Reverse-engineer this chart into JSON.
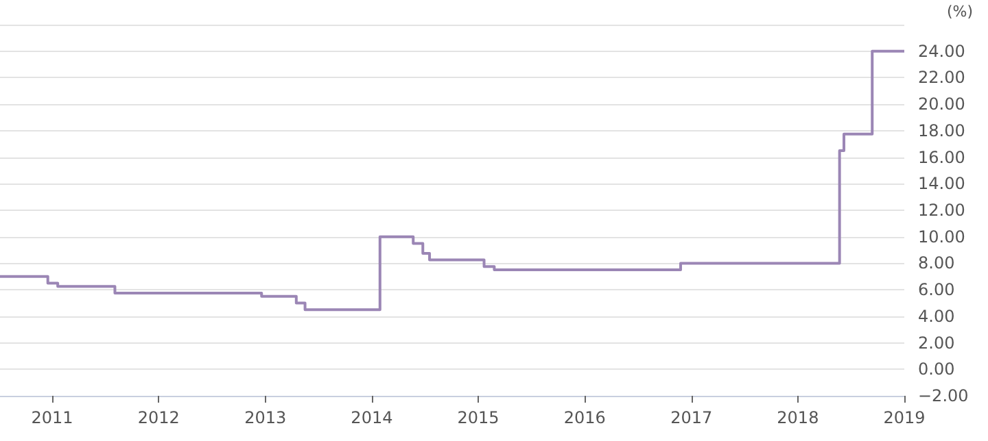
{
  "chart_data": {
    "type": "step",
    "ylabel": "(%)",
    "x": [
      "2010-07-06",
      "2010-12-17",
      "2011-01-20",
      "2011-08-04",
      "2012-12-19",
      "2013-04-17",
      "2013-05-17",
      "2014-01-29",
      "2014-05-23",
      "2014-06-25",
      "2014-07-18",
      "2015-01-21",
      "2015-02-25",
      "2016-11-25",
      "2018-05-24",
      "2018-06-08",
      "2018-09-13",
      "2019-01-01"
    ],
    "series": [
      {
        "color": "#9b86b5",
        "values": [
          7.0,
          6.5,
          6.25,
          5.75,
          5.5,
          5.0,
          4.5,
          10.0,
          9.5,
          8.75,
          8.25,
          7.75,
          7.5,
          8.0,
          16.5,
          17.75,
          24.0,
          24.0
        ]
      }
    ],
    "xlim": [
      "2010-07-06",
      "2019-01-01"
    ],
    "xticks": [
      "2011",
      "2012",
      "2013",
      "2014",
      "2015",
      "2016",
      "2017",
      "2018",
      "2019"
    ],
    "ylim": [
      -2,
      26
    ],
    "yticks": [
      {
        "value": -2,
        "label": "−2.00"
      },
      {
        "value": 0,
        "label": "0.00"
      },
      {
        "value": 2,
        "label": "2.00"
      },
      {
        "value": 4,
        "label": "4.00"
      },
      {
        "value": 6,
        "label": "6.00"
      },
      {
        "value": 8,
        "label": "8.00"
      },
      {
        "value": 10,
        "label": "10.00"
      },
      {
        "value": 12,
        "label": "12.00"
      },
      {
        "value": 14,
        "label": "14.00"
      },
      {
        "value": 16,
        "label": "16.00"
      },
      {
        "value": 18,
        "label": "18.00"
      },
      {
        "value": 20,
        "label": "20.00"
      },
      {
        "value": 22,
        "label": "22.00"
      },
      {
        "value": 24,
        "label": "24.00"
      },
      {
        "value": 26,
        "label": null
      }
    ],
    "grid": "y",
    "marker": "none",
    "line_style": "solid"
  }
}
